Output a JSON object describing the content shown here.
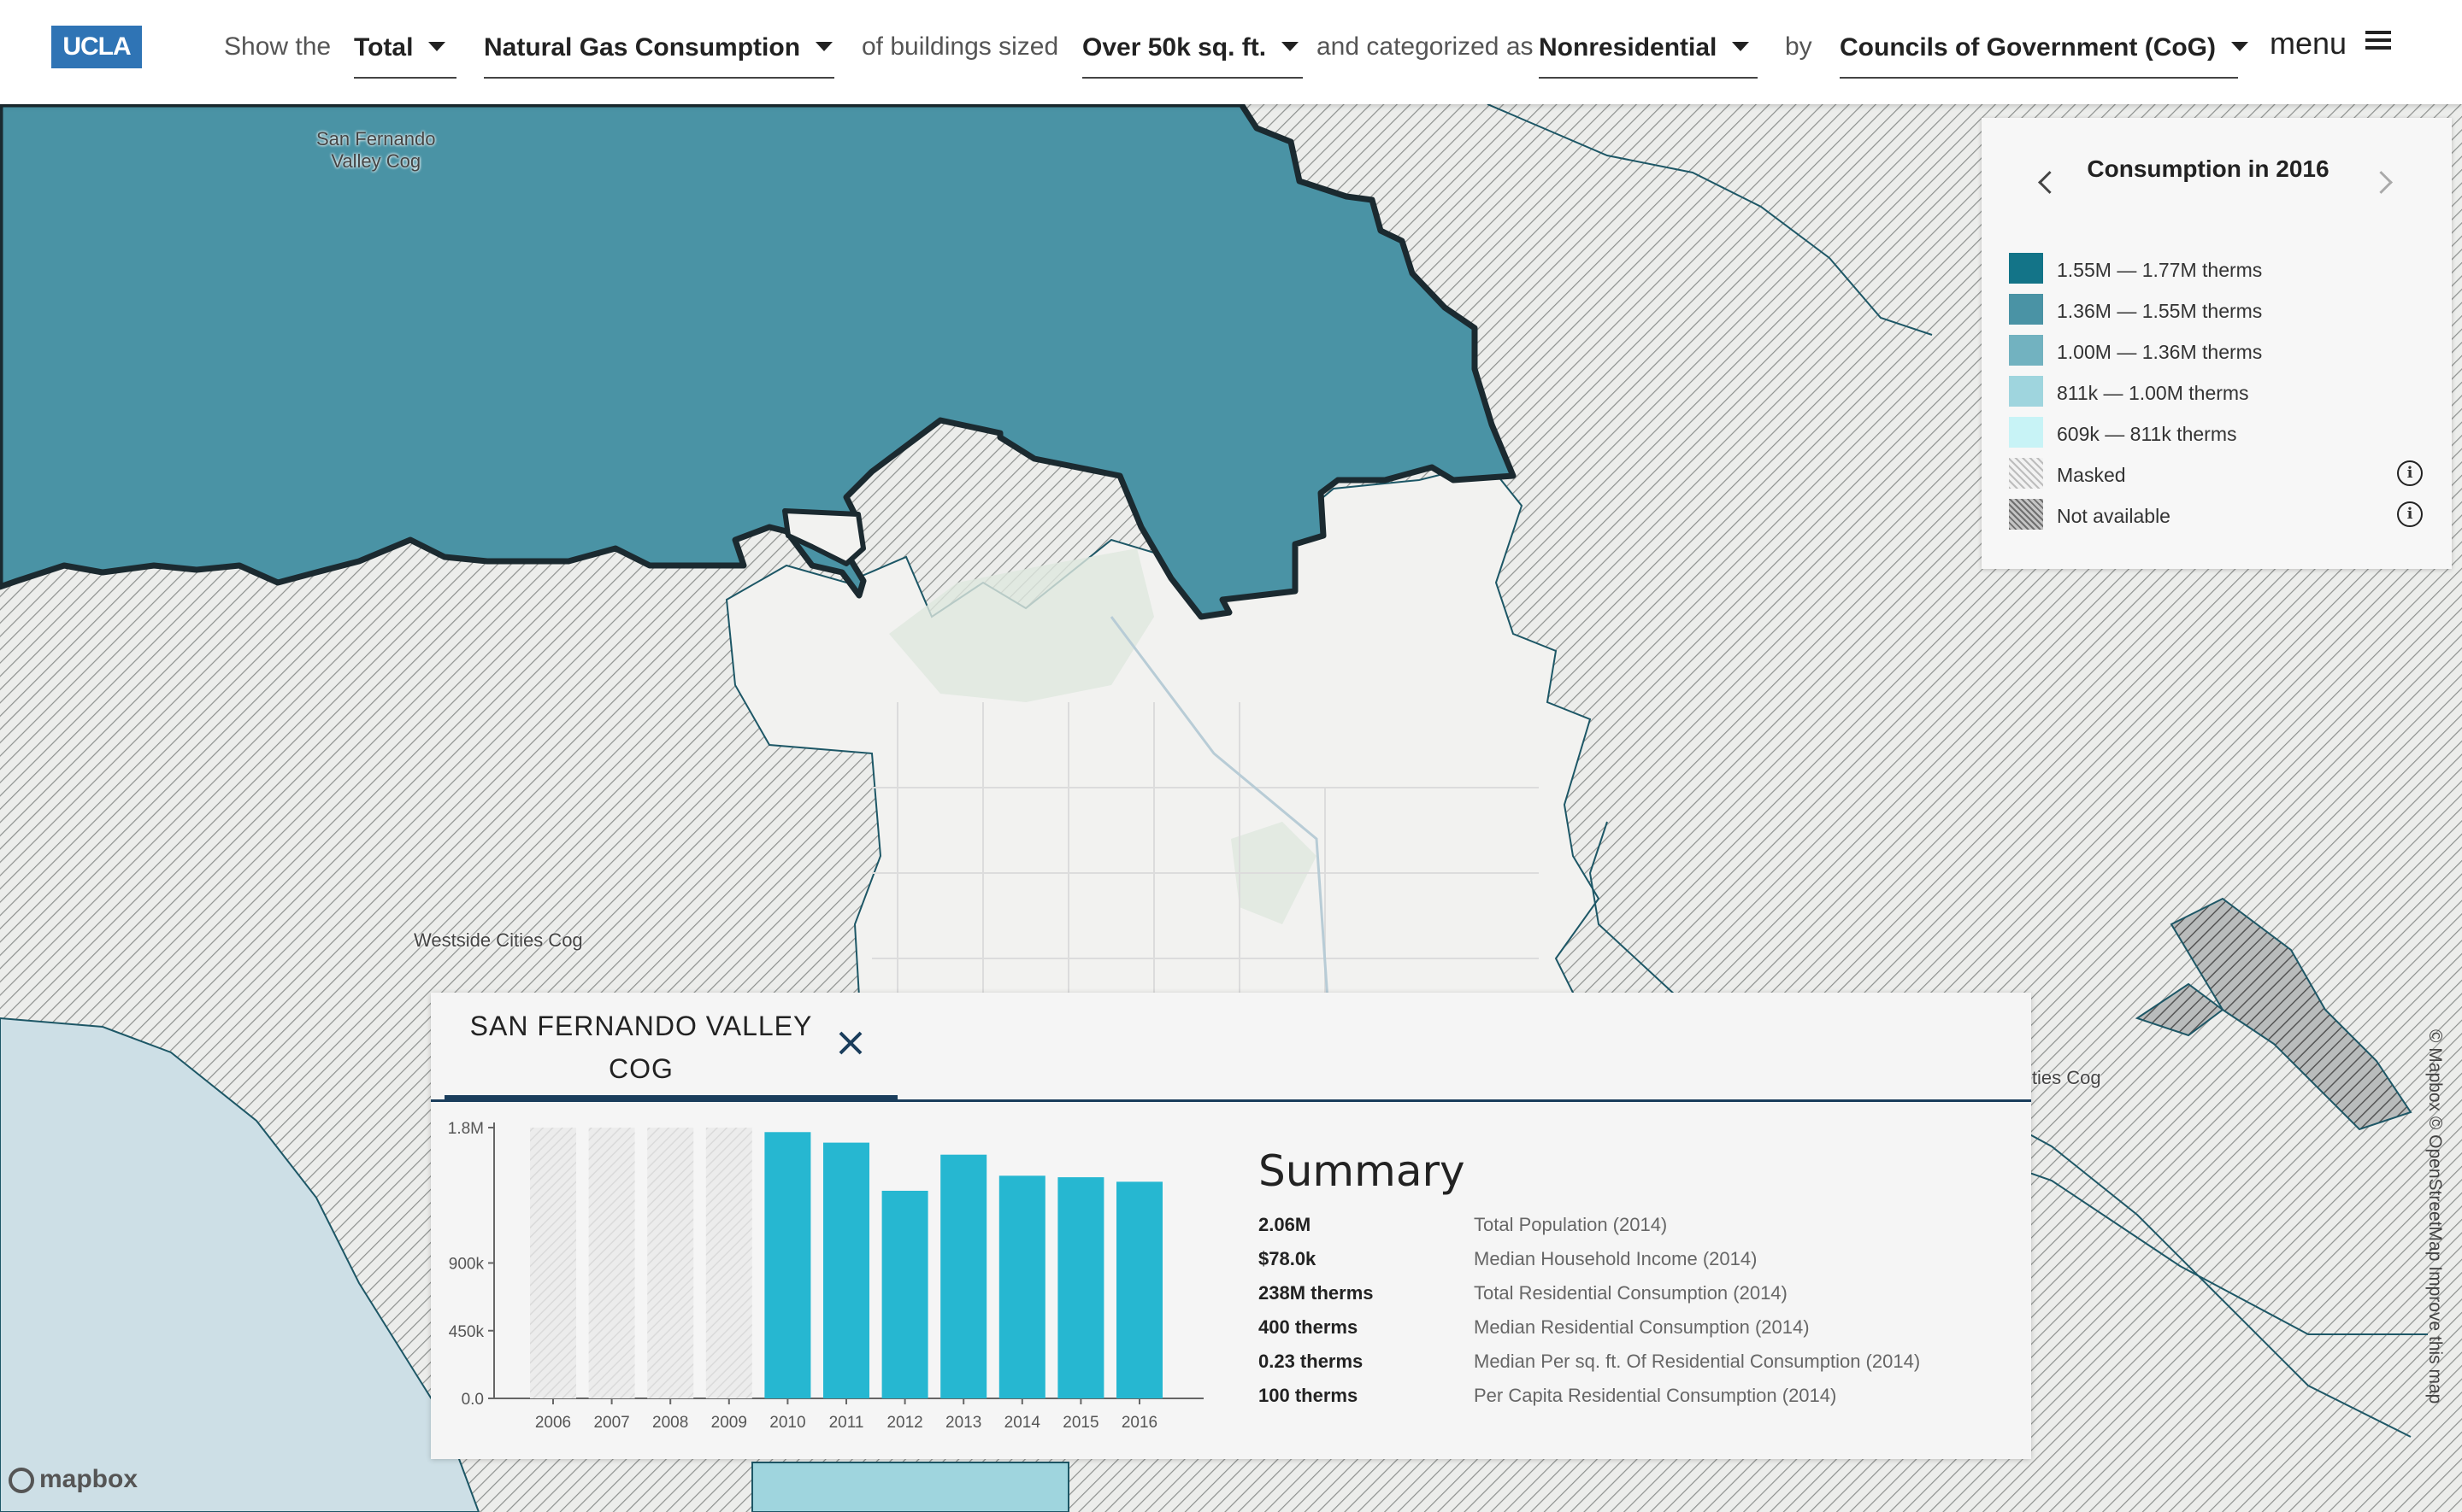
{
  "header": {
    "logo": "UCLA",
    "show_the": "Show the",
    "measure": "Total",
    "fuel": "Natural Gas Consumption",
    "of_buildings": "of buildings sized",
    "size": "Over 50k sq. ft.",
    "categorized": "and categorized as",
    "category": "Nonresidential",
    "by": "by",
    "geography": "Councils of Government (CoG)",
    "menu": "menu"
  },
  "map": {
    "labels": {
      "sfv": "San Fernando\nValley Cog",
      "westside": "Westside Cities Cog",
      "cities": "ities Cog"
    },
    "attribution": "© Mapbox © OpenStreetMap  Improve this map",
    "mapbox": "mapbox",
    "colors": {
      "land": "#f1f1ef",
      "water": "#cddfe6",
      "selected": "#4a93a5",
      "hatch": "#8a8a8a"
    }
  },
  "legend": {
    "title": "Consumption in 2016",
    "items": [
      {
        "label": "1.55M — 1.77M therms",
        "color": "#137488"
      },
      {
        "label": "1.36M — 1.55M therms",
        "color": "#4a93a5"
      },
      {
        "label": "1.00M — 1.36M therms",
        "color": "#72b2c0"
      },
      {
        "label": "811k — 1.00M therms",
        "color": "#9fd5de"
      },
      {
        "label": "609k — 811k therms",
        "color": "#c8f3f6"
      },
      {
        "label": "Masked",
        "color": "hatch-light"
      },
      {
        "label": "Not available",
        "color": "hatch-dark"
      }
    ],
    "info_icon": "i"
  },
  "panel": {
    "tab_title": "SAN FERNANDO VALLEY COG",
    "summary_title": "Summary",
    "summary": [
      {
        "value": "2.06M",
        "label": "Total Population (2014)"
      },
      {
        "value": "$78.0k",
        "label": "Median Household Income (2014)"
      },
      {
        "value": "238M therms",
        "label": "Total Residential Consumption (2014)"
      },
      {
        "value": "400 therms",
        "label": "Median Residential Consumption (2014)"
      },
      {
        "value": "0.23 therms",
        "label": "Median Per sq. ft. Of Residential Consumption (2014)"
      },
      {
        "value": "100 therms",
        "label": "Per Capita Residential Consumption (2014)"
      }
    ]
  },
  "chart_data": {
    "type": "bar",
    "categories": [
      "2006",
      "2007",
      "2008",
      "2009",
      "2010",
      "2011",
      "2012",
      "2013",
      "2014",
      "2015",
      "2016"
    ],
    "values": [
      null,
      null,
      null,
      null,
      1770000,
      1700000,
      1380000,
      1620000,
      1480000,
      1470000,
      1440000
    ],
    "masked": [
      true,
      true,
      true,
      true,
      false,
      false,
      false,
      false,
      false,
      false,
      false
    ],
    "ytick_labels": [
      "0.0",
      "450k",
      "900k",
      "1.8M"
    ],
    "yticks": [
      0,
      450000,
      900000,
      1800000
    ],
    "ylim": [
      0,
      1800000
    ],
    "bar_color": "#26b7d1",
    "masked_color": "#e6e6e6"
  }
}
